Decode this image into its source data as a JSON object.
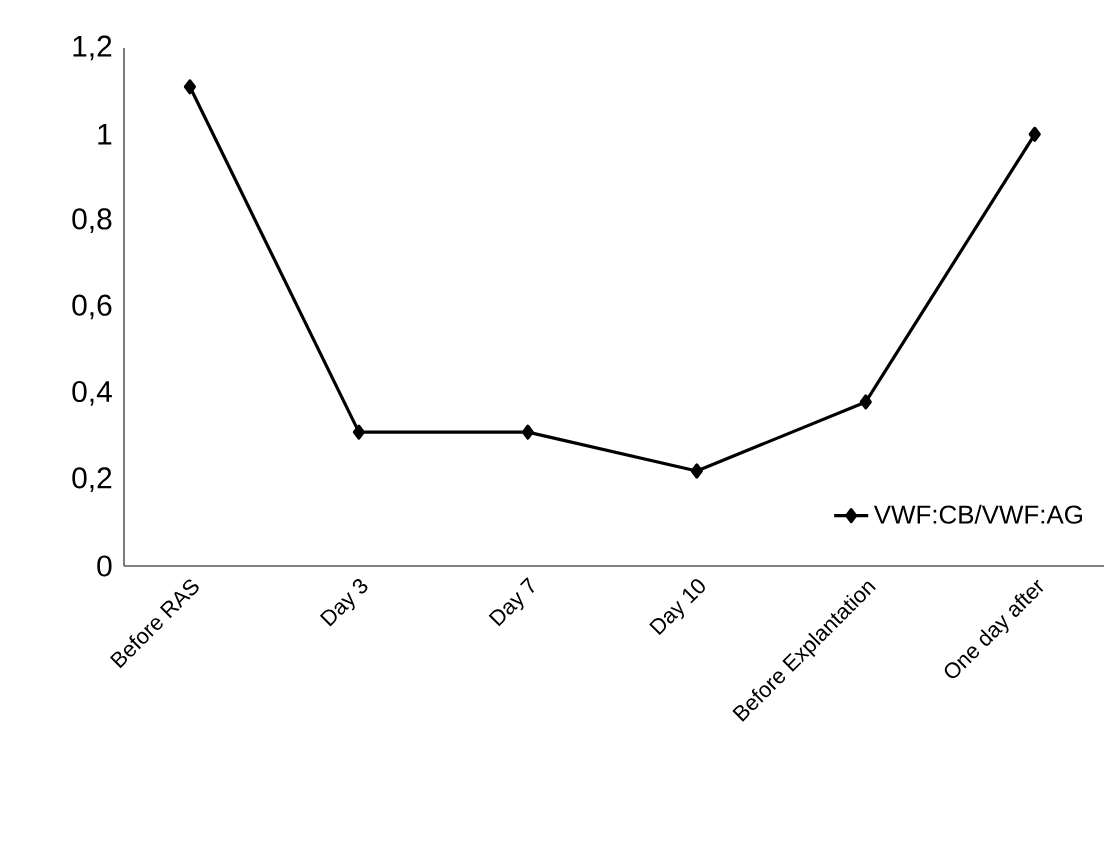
{
  "chart_data": {
    "type": "line",
    "categories": [
      "Before RAS",
      "Day 3",
      "Day 7",
      "Day 10",
      "Before Explantation",
      "One day after"
    ],
    "series": [
      {
        "name": "VWF:CB/VWF:AG",
        "color": "#000000",
        "values": [
          1.11,
          0.31,
          0.31,
          0.22,
          0.38,
          1.0
        ]
      }
    ],
    "ylim": [
      0,
      1.2
    ],
    "yticks": [
      0,
      {
        "value": 0.2,
        "label": "0,2"
      },
      {
        "value": 0.4,
        "label": "0,4"
      },
      {
        "value": 0.6,
        "label": "0,6"
      },
      {
        "value": 0.8,
        "label": "0,8"
      },
      1,
      {
        "value": 1.2,
        "label": "1,2"
      }
    ],
    "grid": false,
    "legend": "bottom right",
    "marker": "diamond",
    "line_style": "solid"
  }
}
